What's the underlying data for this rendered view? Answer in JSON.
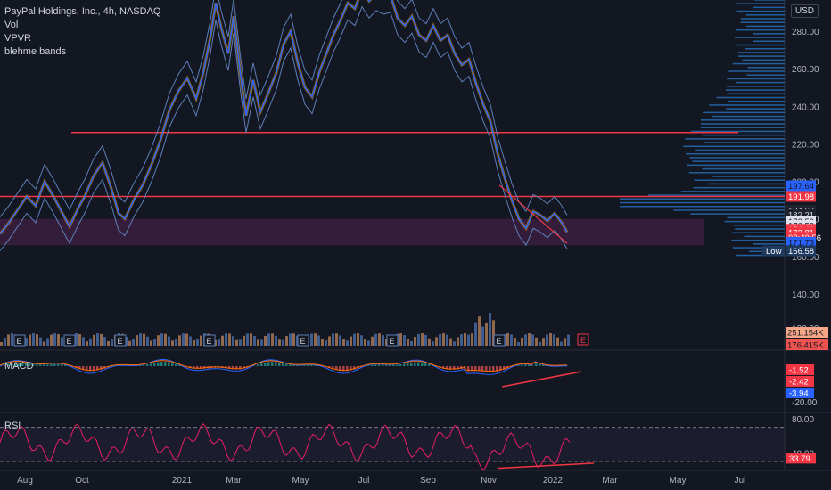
{
  "legend": {
    "title": "PayPal Holdings, Inc., 4h, NASDAQ",
    "items": [
      "Vol",
      "VPVR",
      "blehme bands"
    ]
  },
  "currency": "USD",
  "colors": {
    "background": "#131722",
    "price_line": "#2962ff",
    "band": "#5d7fb8",
    "level_line": "#f23645",
    "zone": "#3b1f3f",
    "vpvr": "#2a78c8",
    "macd": "#2962ff",
    "signal": "#ff6d00",
    "rsi": "#e91e63",
    "trendline": "#f23645"
  },
  "chart_data": [
    {
      "type": "line",
      "name": "price",
      "x_ticks": [
        "Aug",
        "Oct",
        "2021",
        "Mar",
        "May",
        "Jul",
        "Sep",
        "Nov",
        "2022",
        "Mar",
        "May",
        "Jul"
      ],
      "y_ticks": [
        140,
        160,
        180,
        200,
        220,
        240,
        260,
        280
      ],
      "ylim": [
        128,
        300
      ],
      "series": [
        {
          "values": [
            [
              0,
              172
            ],
            [
              10,
              178
            ],
            [
              20,
              185
            ],
            [
              30,
              192
            ],
            [
              40,
              187
            ],
            [
              50,
              200
            ],
            [
              60,
              192
            ],
            [
              70,
              183
            ],
            [
              78,
              176
            ],
            [
              88,
              186
            ],
            [
              95,
              192
            ],
            [
              105,
              203
            ],
            [
              115,
              210
            ],
            [
              125,
              196
            ],
            [
              133,
              183
            ],
            [
              140,
              180
            ],
            [
              150,
              190
            ],
            [
              160,
              198
            ],
            [
              170,
              209
            ],
            [
              180,
              222
            ],
            [
              190,
              238
            ],
            [
              200,
              248
            ],
            [
              210,
              255
            ],
            [
              220,
              244
            ],
            [
              228,
              258
            ],
            [
              236,
              277
            ],
            [
              242,
              295
            ],
            [
              248,
              282
            ],
            [
              256,
              268
            ],
            [
              262,
              288
            ],
            [
              270,
              256
            ],
            [
              276,
              235
            ],
            [
              284,
              254
            ],
            [
              292,
              237
            ],
            [
              300,
              246
            ],
            [
              310,
              258
            ],
            [
              318,
              273
            ],
            [
              326,
              280
            ],
            [
              334,
              263
            ],
            [
              342,
              250
            ],
            [
              350,
              245
            ],
            [
              358,
              258
            ],
            [
              366,
              268
            ],
            [
              374,
              278
            ],
            [
              382,
              286
            ],
            [
              390,
              295
            ],
            [
              398,
              292
            ],
            [
              406,
              302
            ],
            [
              414,
              296
            ],
            [
              422,
              300
            ],
            [
              430,
              298
            ],
            [
              438,
              299
            ],
            [
              446,
              287
            ],
            [
              454,
              283
            ],
            [
              462,
              288
            ],
            [
              470,
              278
            ],
            [
              478,
              275
            ],
            [
              486,
              283
            ],
            [
              494,
              275
            ],
            [
              502,
              278
            ],
            [
              510,
              268
            ],
            [
              518,
              262
            ],
            [
              526,
              265
            ],
            [
              534,
              252
            ],
            [
              542,
              241
            ],
            [
              550,
              232
            ],
            [
              558,
              215
            ],
            [
              566,
              202
            ],
            [
              574,
              190
            ],
            [
              582,
              180
            ],
            [
              590,
              175
            ],
            [
              598,
              184
            ],
            [
              606,
              182
            ],
            [
              614,
              179
            ],
            [
              622,
              183
            ],
            [
              630,
              178
            ],
            [
              636,
              173
            ]
          ]
        }
      ],
      "horizontal_levels": [
        226,
        191.98
      ],
      "zone": [
        166,
        180
      ],
      "price_labels": [
        {
          "value": "197.64",
          "y": 197.64,
          "bg": "#2962ff",
          "fg": "#131722"
        },
        {
          "value": "191.98",
          "y": 191.98,
          "bg": "#f23645",
          "fg": "#ffffff"
        },
        {
          "value": "184.69",
          "y": 184.69,
          "bg": "#1e222d",
          "fg": "#d1d4dc"
        },
        {
          "value": "182.21",
          "y": 182.21,
          "bg": "#1e222d",
          "fg": "#d1d4dc"
        },
        {
          "value": "178.59",
          "y": 178.59,
          "bg": "#e0e3eb",
          "fg": "#131722"
        },
        {
          "value": "176.53",
          "y": 176.53,
          "bg": "#e0e3eb",
          "fg": "#131722"
        },
        {
          "value": "174.46",
          "y": 174.46,
          "bg": "#f23645",
          "fg": "#ffffff"
        },
        {
          "value": "172.81",
          "y": 172.81,
          "bg": "#f23645",
          "fg": "#ffffff"
        },
        {
          "value": "02:40:56",
          "y": 170.2,
          "bg": "#f23645",
          "fg": "#ffffff"
        },
        {
          "value": "171.73",
          "y": 167.6,
          "bg": "#2962ff",
          "fg": "#131722"
        },
        {
          "value": "166.58",
          "y": 163.0,
          "bg": "#1e3a5f",
          "fg": "#ffffff"
        }
      ],
      "low_label": "Low",
      "volume_labels": [
        "251.154K",
        "176.415K"
      ],
      "volume_tick": "120.00"
    },
    {
      "type": "line",
      "name": "MACD",
      "label": "MACD",
      "y_ticks": [
        "-20.00"
      ],
      "value_labels": [
        "-1.52",
        "-2.42",
        "-3.94"
      ]
    },
    {
      "type": "line",
      "name": "RSI",
      "label": "RSI",
      "y_ticks": [
        80.0,
        40.0
      ],
      "value_label": "33.79",
      "ylim": [
        20,
        90
      ]
    }
  ]
}
